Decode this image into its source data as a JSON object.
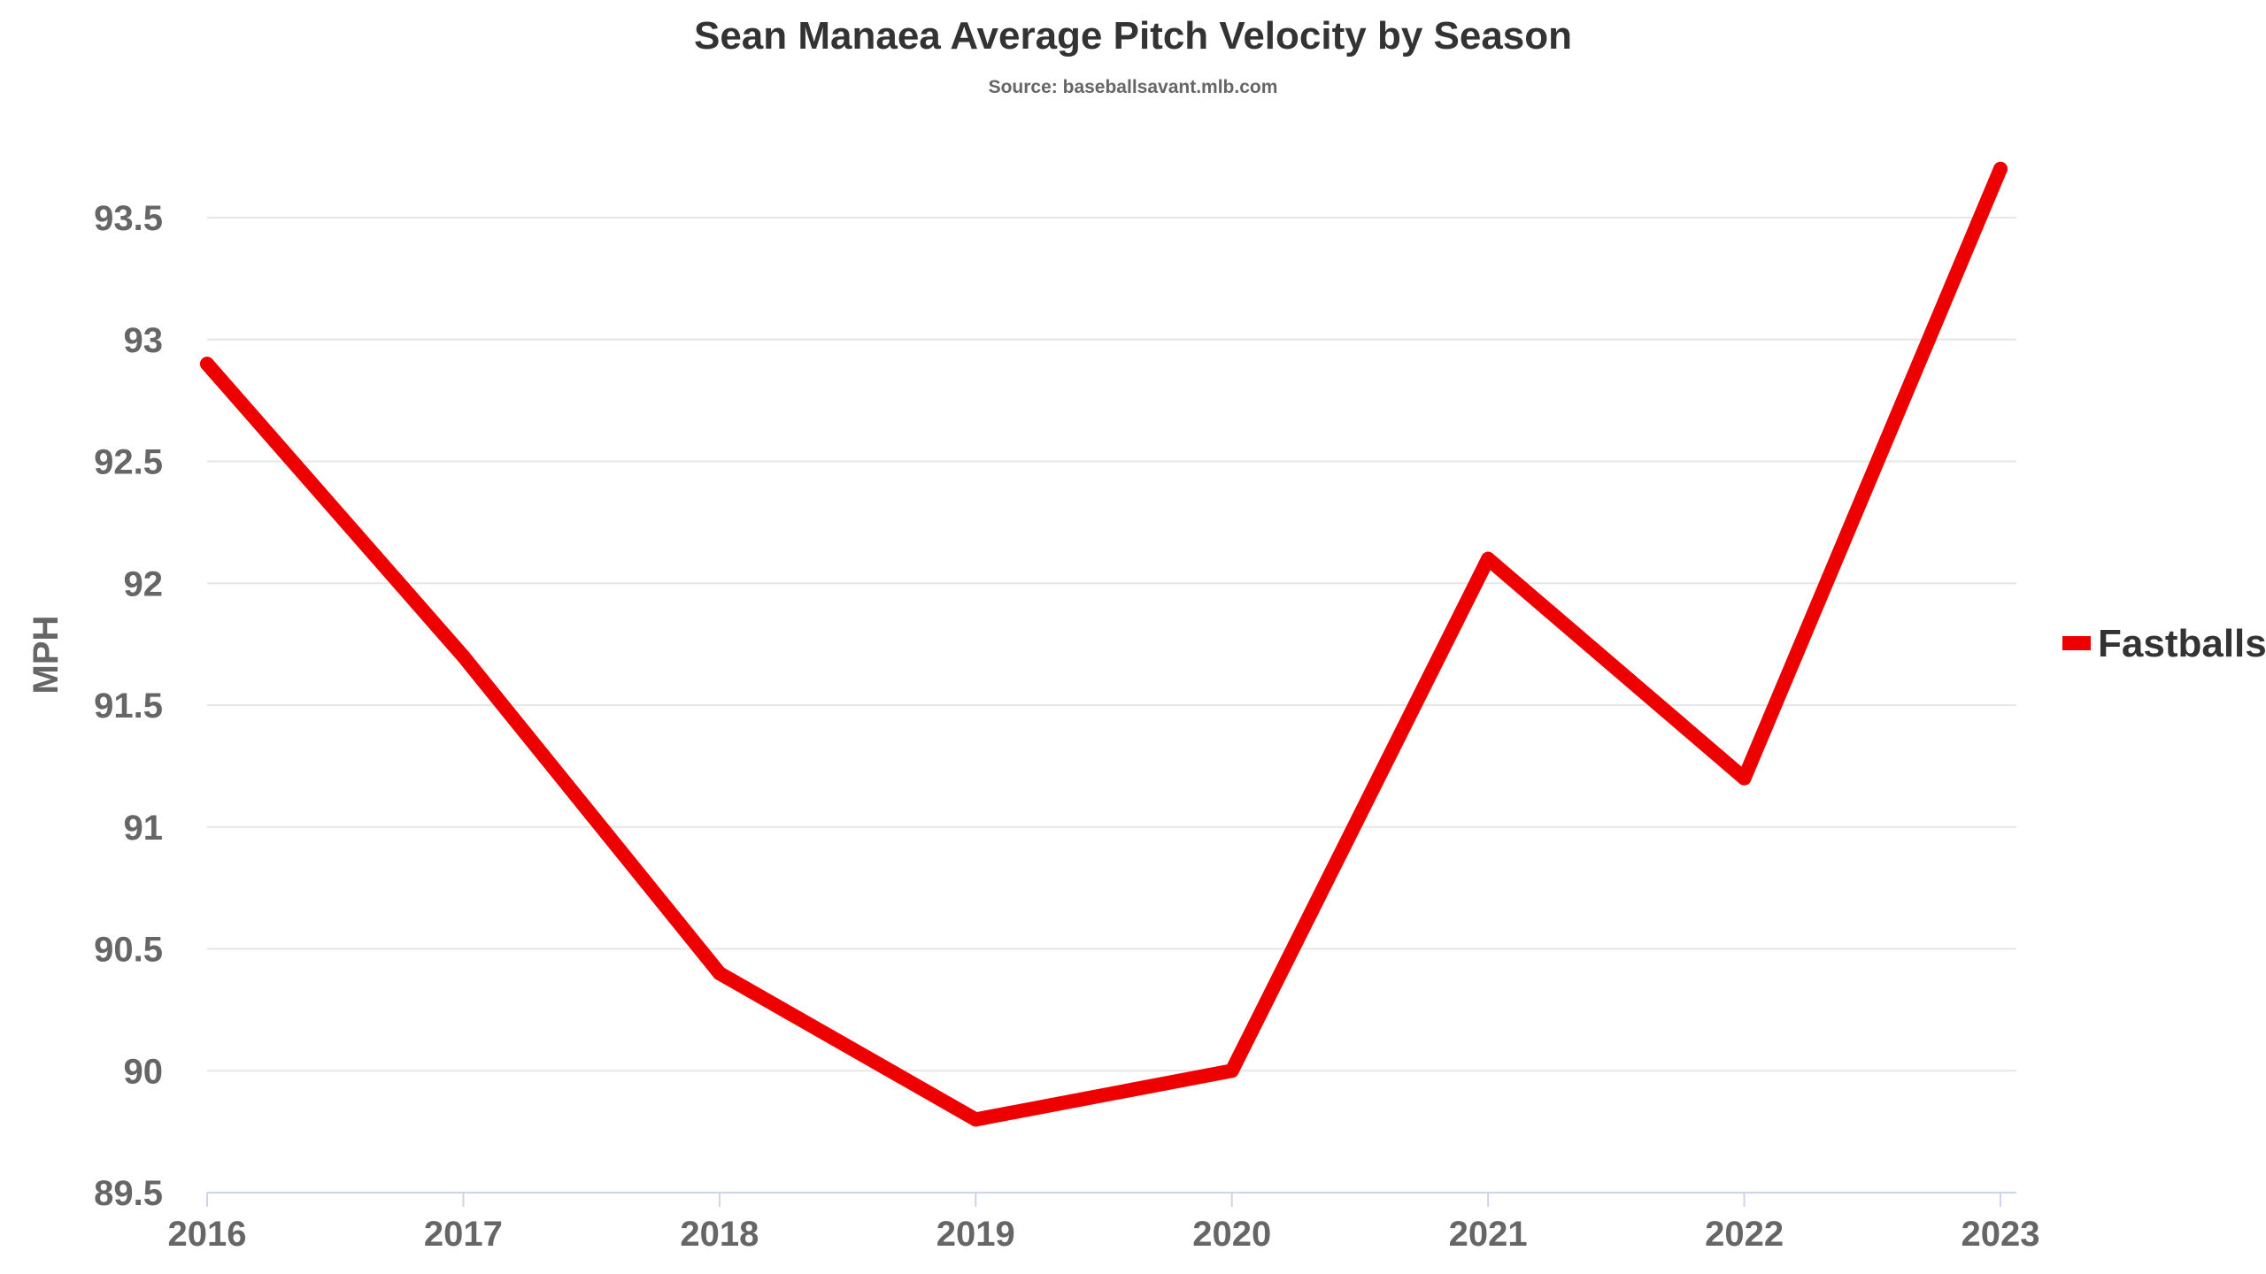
{
  "chart_data": {
    "type": "line",
    "title": "Sean Manaea Average Pitch Velocity by Season",
    "subtitle": "Source: baseballsavant.mlb.com",
    "xlabel": "",
    "ylabel": "MPH",
    "categories": [
      "2016",
      "2017",
      "2018",
      "2019",
      "2020",
      "2021",
      "2022",
      "2023"
    ],
    "series": [
      {
        "name": "Fastballs",
        "color": "#ee0000",
        "values": [
          92.9,
          91.7,
          90.4,
          89.8,
          90.0,
          92.1,
          91.2,
          93.7
        ]
      }
    ],
    "ylim": [
      89.5,
      93.5
    ],
    "yticks": [
      "89.5",
      "90",
      "90.5",
      "91",
      "91.5",
      "92",
      "92.5",
      "93",
      "93.5"
    ],
    "grid": true,
    "legend_position": "right"
  }
}
